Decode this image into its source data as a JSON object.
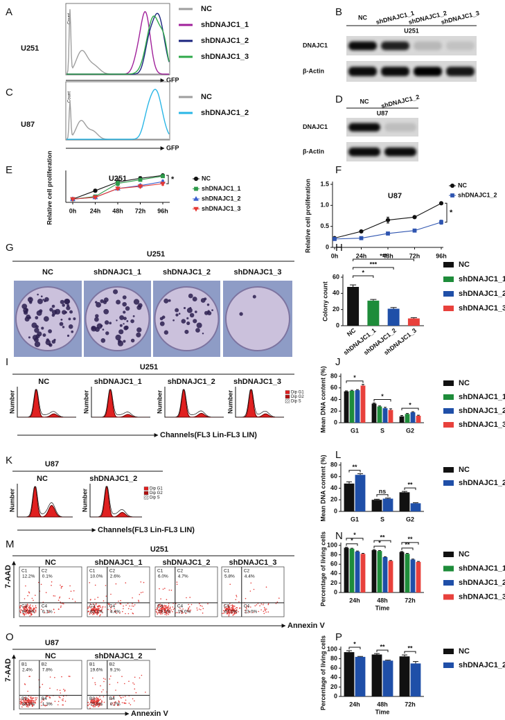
{
  "figure": {
    "A": {
      "label": "A",
      "cell_line": "U251",
      "y_label": "Count",
      "x_label": "GFP",
      "legend": [
        {
          "name": "NC",
          "color": "#9e9e9e"
        },
        {
          "name": "shDNAJC1_1",
          "color": "#a0209a"
        },
        {
          "name": "shDNAJC1_2",
          "color": "#1a237e"
        },
        {
          "name": "shDNAJC1_3",
          "color": "#2ea84a"
        }
      ]
    },
    "B": {
      "label": "B",
      "lanes": [
        "NC",
        "shDNAJC1_1",
        "shDNAJC1_2",
        "shDNAJC1_3"
      ],
      "cell_line": "U251",
      "rows": [
        "DNAJC1",
        "β-Actin"
      ]
    },
    "C": {
      "label": "C",
      "cell_line": "U87",
      "y_label": "Count",
      "x_label": "GFP",
      "legend": [
        {
          "name": "NC",
          "color": "#9e9e9e"
        },
        {
          "name": "shDNAJC1_2",
          "color": "#29b6e6"
        }
      ]
    },
    "D": {
      "label": "D",
      "lanes": [
        "NC",
        "shDNAJC1_2"
      ],
      "cell_line": "U87",
      "rows": [
        "DNAJC1",
        "β-Actin"
      ]
    },
    "G": {
      "label": "G",
      "cell_line": "U251",
      "columns": [
        "NC",
        "shDNAJC1_1",
        "shDNAJC1_2",
        "shDNAJC1_3"
      ]
    },
    "I": {
      "label": "I",
      "cell_line": "U251",
      "columns": [
        "NC",
        "shDNAJC1_1",
        "shDNAJC1_2",
        "shDNAJC1_3"
      ],
      "y_label": "Number",
      "legend": [
        "Dip G1",
        "Dip G2",
        "Dip S"
      ],
      "x_label": "Channels(FL3 Lin-FL3 LIN)"
    },
    "K": {
      "label": "K",
      "cell_line": "U87",
      "columns": [
        "NC",
        "shDNAJC1_2"
      ],
      "y_label": "Number",
      "legend": [
        "Dip G1",
        "Dip G2",
        "Dip S"
      ],
      "x_label": "Channels(FL3 Lin-FL3 LIN)"
    },
    "M": {
      "label": "M",
      "cell_line": "U251",
      "y_label": "7-AAD",
      "x_label": "Annexin V",
      "plots": [
        {
          "title": "NC",
          "quadrants": [
            [
              "C1",
              "12.2%"
            ],
            [
              "C2",
              "0.1%"
            ],
            [
              "C3",
              "87.6%"
            ],
            [
              "C4",
              "0.1%"
            ]
          ]
        },
        {
          "title": "shDNAJC1_1",
          "quadrants": [
            [
              "C1",
              "10.0%"
            ],
            [
              "C2",
              "2.6%"
            ],
            [
              "C3",
              "83.1%"
            ],
            [
              "C4",
              "4.4%"
            ]
          ]
        },
        {
          "title": "shDNAJC1_2",
          "quadrants": [
            [
              "C1",
              "6.0%"
            ],
            [
              "C2",
              "4.7%"
            ],
            [
              "C3",
              "70.2%"
            ],
            [
              "C4",
              "19.0%"
            ]
          ]
        },
        {
          "title": "shDNAJC1_3",
          "quadrants": [
            [
              "C1",
              "5.8%"
            ],
            [
              "C2",
              "4.4%"
            ],
            [
              "C3",
              "67.0%"
            ],
            [
              "C4",
              "23.0%"
            ]
          ]
        }
      ]
    },
    "O": {
      "label": "O",
      "cell_line": "U87",
      "y_label": "7-AAD",
      "x_label": "Annexin V",
      "plots": [
        {
          "title": "NC",
          "quadrants": [
            [
              "B1",
              "2.4%"
            ],
            [
              "B2",
              "7.8%"
            ],
            [
              "B3",
              "88.5%"
            ],
            [
              "B4",
              "1.3%"
            ]
          ]
        },
        {
          "title": "shDNAJC1_2",
          "quadrants": [
            [
              "B1",
              "19.6%"
            ],
            [
              "B2",
              "9.1%"
            ],
            [
              "B3",
              "70.5%"
            ],
            [
              "B4",
              "0.7%"
            ]
          ]
        }
      ]
    }
  },
  "chart_data": [
    {
      "panel": "E",
      "type": "line",
      "title": "U251",
      "y_label": "Relative cell proliferation",
      "categories": [
        "0h",
        "24h",
        "48h",
        "72h",
        "96h"
      ],
      "ylim": [
        0,
        2
      ],
      "series": [
        {
          "name": "NC",
          "color": "#111111",
          "marker": "circle",
          "values": [
            0.22,
            0.8,
            1.4,
            1.65,
            1.85
          ],
          "errors": [
            0.03,
            0.1,
            0.22,
            0.12,
            0.06
          ]
        },
        {
          "name": "shDNAJC1_1",
          "color": "#2e9a4a",
          "marker": "square",
          "values": [
            0.22,
            0.4,
            1.3,
            1.55,
            1.8
          ],
          "errors": [
            0.02,
            0.04,
            0.15,
            0.1,
            0.05
          ]
        },
        {
          "name": "shDNAJC1_2",
          "color": "#3b5fcf",
          "marker": "triangle",
          "values": [
            0.22,
            0.35,
            0.95,
            1.15,
            1.42
          ],
          "errors": [
            0.02,
            0.04,
            0.08,
            0.1,
            0.1
          ]
        },
        {
          "name": "shDNAJC1_3",
          "color": "#e53935",
          "marker": "triangle-down",
          "values": [
            0.22,
            0.35,
            0.95,
            1.1,
            1.28
          ],
          "errors": [
            0.02,
            0.03,
            0.08,
            0.1,
            0.1
          ]
        }
      ],
      "annotations": [
        "*"
      ]
    },
    {
      "panel": "F",
      "type": "line",
      "title": "U87",
      "y_label": "Relative cell proliferation",
      "categories": [
        "0h",
        "24h",
        "48h",
        "72h",
        "96h"
      ],
      "ylim": [
        0,
        1.5
      ],
      "yticks": [
        0,
        {
          "value": 0.5,
          "label": "0.5"
        },
        {
          "value": 1,
          "label": "1.0"
        },
        1.5
      ],
      "series": [
        {
          "name": "NC",
          "color": "#111111",
          "marker": "circle",
          "values": [
            0.22,
            0.38,
            0.65,
            0.72,
            1.05
          ],
          "errors": [
            0.02,
            0.02,
            0.07,
            0.02,
            0.03
          ]
        },
        {
          "name": "shDNAJC1_2",
          "color": "#2f55b0",
          "marker": "square",
          "values": [
            0.2,
            0.22,
            0.33,
            0.4,
            0.6
          ],
          "errors": [
            0.02,
            0.02,
            0.02,
            0.02,
            0.05
          ]
        }
      ],
      "annotations": [
        "*"
      ]
    },
    {
      "panel": "H",
      "type": "bar",
      "y_label": "Colony count",
      "categories": [
        "NC",
        "shDNAJC1_1",
        "shDNAJC1_2",
        "shDNAJC1_3"
      ],
      "values": [
        48,
        31,
        21,
        9
      ],
      "errors": [
        2.5,
        1.5,
        1.5,
        1
      ],
      "colors": [
        "#111111",
        "#1e8c3a",
        "#1f4fa8",
        "#e8413c"
      ],
      "ylim": [
        0,
        60
      ],
      "yticks": [
        0,
        20,
        40,
        60
      ],
      "annotations": [
        "*",
        "***",
        "***"
      ]
    },
    {
      "panel": "J",
      "type": "bar",
      "y_label": "Mean DNA content (%)",
      "categories": [
        "G1",
        "S",
        "G2"
      ],
      "ylim": [
        0,
        80
      ],
      "yticks": [
        0,
        20,
        40,
        60,
        80
      ],
      "series": [
        {
          "name": "NC",
          "color": "#111111",
          "values": [
            54,
            33,
            11
          ],
          "errors": [
            1,
            1,
            1.5
          ]
        },
        {
          "name": "shDNAJC1_1",
          "color": "#1e8c3a",
          "values": [
            55,
            28,
            15
          ],
          "errors": [
            1,
            1,
            1
          ]
        },
        {
          "name": "shDNAJC1_2",
          "color": "#1f4fa8",
          "values": [
            56,
            25,
            18
          ],
          "errors": [
            1,
            1.5,
            1
          ]
        },
        {
          "name": "shDNAJC1_3",
          "color": "#e8413c",
          "values": [
            64,
            22,
            12
          ],
          "errors": [
            2,
            2,
            1
          ]
        }
      ],
      "annotations": [
        "*",
        "*",
        "*"
      ]
    },
    {
      "panel": "L",
      "type": "bar",
      "y_label": "Mean DNA content (%)",
      "categories": [
        "G1",
        "S",
        "G2"
      ],
      "ylim": [
        0,
        80
      ],
      "yticks": [
        0,
        20,
        40,
        60,
        80
      ],
      "series": [
        {
          "name": "NC",
          "color": "#111111",
          "values": [
            48,
            20,
            33
          ],
          "errors": [
            3,
            1,
            1.5
          ]
        },
        {
          "name": "shDNAJC1_2",
          "color": "#1f4fa8",
          "values": [
            63,
            22,
            14
          ],
          "errors": [
            2,
            1,
            1
          ]
        }
      ],
      "annotations": [
        "**",
        "ns",
        "**"
      ]
    },
    {
      "panel": "N",
      "type": "bar",
      "y_label": "Percentage of living cells",
      "x_label": "Time",
      "categories": [
        "24h",
        "48h",
        "72h"
      ],
      "ylim": [
        0,
        100
      ],
      "yticks": [
        0,
        20,
        40,
        60,
        80,
        100
      ],
      "series": [
        {
          "name": "NC",
          "color": "#111111",
          "values": [
            95,
            90,
            86
          ],
          "errors": [
            1,
            1,
            1
          ]
        },
        {
          "name": "shDNAJC1_1",
          "color": "#1e8c3a",
          "values": [
            93,
            88,
            82
          ],
          "errors": [
            1,
            1,
            1
          ]
        },
        {
          "name": "shDNAJC1_2",
          "color": "#1f4fa8",
          "values": [
            87,
            75,
            70
          ],
          "errors": [
            1,
            1,
            1
          ]
        },
        {
          "name": "shDNAJC1_3",
          "color": "#e8413c",
          "values": [
            82,
            67,
            65
          ],
          "errors": [
            1,
            1,
            1
          ]
        }
      ],
      "annotations": [
        "*",
        "*",
        "**",
        "*",
        "**",
        "**"
      ]
    },
    {
      "panel": "P",
      "type": "bar",
      "y_label": "Percentage of living cells",
      "x_label": "Time",
      "categories": [
        "24h",
        "48h",
        "72h"
      ],
      "ylim": [
        0,
        100
      ],
      "yticks": [
        0,
        20,
        40,
        60,
        80,
        100
      ],
      "series": [
        {
          "name": "NC",
          "color": "#111111",
          "values": [
            94,
            89,
            85
          ],
          "errors": [
            3,
            2,
            3
          ]
        },
        {
          "name": "shDNAJC1_2",
          "color": "#1f4fa8",
          "values": [
            84,
            76,
            70
          ],
          "errors": [
            1,
            1,
            4
          ]
        }
      ],
      "annotations": [
        "*",
        "**",
        "**"
      ]
    }
  ]
}
